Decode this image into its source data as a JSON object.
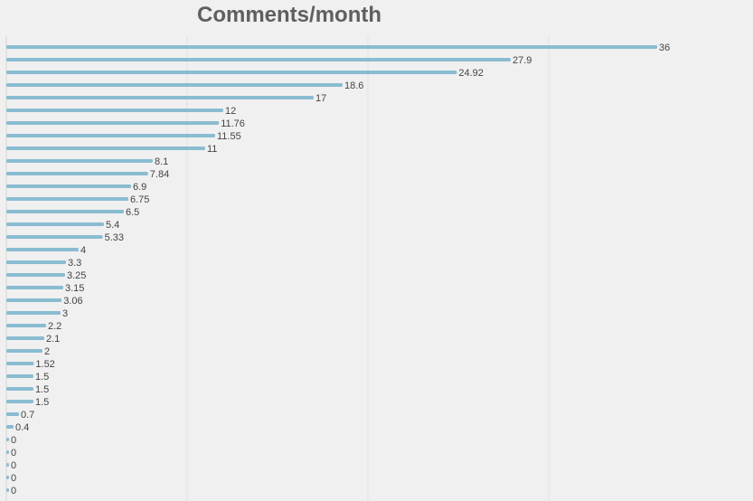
{
  "chart_data": {
    "type": "bar",
    "orientation": "horizontal",
    "title": "Comments/month",
    "xlabel": "",
    "ylabel": "",
    "xlim": [
      0,
      40
    ],
    "grid": true,
    "legend": "none",
    "bar_color": "#8abcd1",
    "values": [
      36,
      27.9,
      24.92,
      18.6,
      17,
      12,
      11.76,
      11.55,
      11,
      8.1,
      7.84,
      6.9,
      6.75,
      6.5,
      5.4,
      5.33,
      4,
      3.3,
      3.25,
      3.15,
      3.06,
      3,
      2.2,
      2.1,
      2,
      1.52,
      1.5,
      1.5,
      1.5,
      0.7,
      0.4,
      0,
      0,
      0,
      0,
      0
    ],
    "value_labels": [
      "36",
      "27.9",
      "24.92",
      "18.6",
      "17",
      "12",
      "11.76",
      "11.55",
      "11",
      "8.1",
      "7.84",
      "6.9",
      "6.75",
      "6.5",
      "5.4",
      "5.33",
      "4",
      "3.3",
      "3.25",
      "3.15",
      "3.06",
      "3",
      "2.2",
      "2.1",
      "2",
      "1.52",
      "1.5",
      "1.5",
      "1.5",
      "0.7",
      "0.4",
      "0",
      "0",
      "0",
      "0",
      "0"
    ]
  }
}
